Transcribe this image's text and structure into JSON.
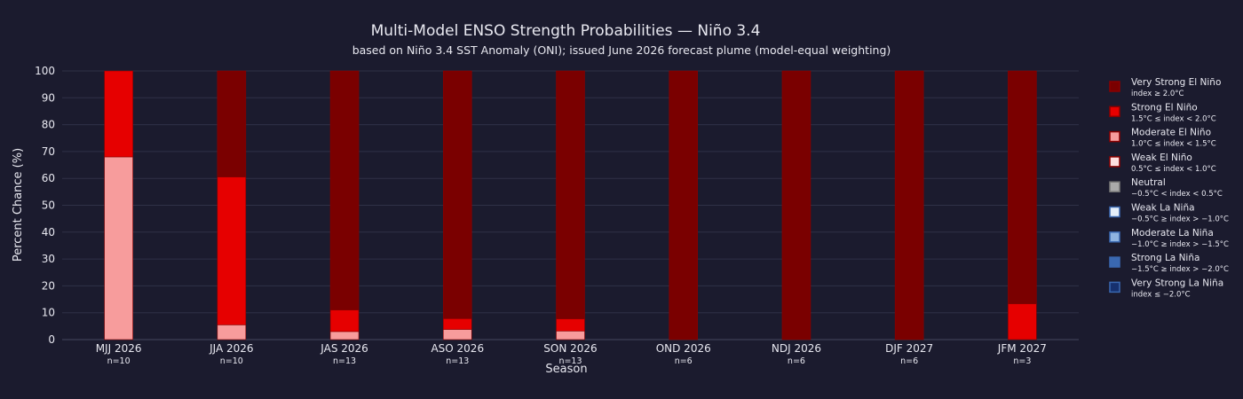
{
  "colors": {
    "background": "#1b1b2e",
    "grid": "#2f3147",
    "text": "#e8e8f0",
    "very_strong_el_nino": "#7a0000",
    "strong_el_nino": "#e60000",
    "moderate_el_nino": "#f79c9c",
    "weak_el_nino": "#fde0e0",
    "neutral": "#aaaaaa",
    "weak_la_nina": "#e6f0fa",
    "moderate_la_nina": "#8fb4e0",
    "strong_la_nina": "#3a68b0",
    "very_strong_la_nina": "#16306e"
  },
  "chart_data": {
    "type": "bar",
    "stacked": true,
    "title": "Multi-Model ENSO Strength Probabilities — Niño 3.4",
    "subtitle": "based on Niño 3.4 SST Anomaly (ONI); issued June 2026 forecast plume (model-equal weighting)",
    "xlabel": "Season",
    "ylabel": "Percent Chance (%)",
    "ylim": [
      0,
      100
    ],
    "yticks": [
      0,
      10,
      20,
      30,
      40,
      50,
      60,
      70,
      80,
      90,
      100
    ],
    "grid": true,
    "legend_position": "right",
    "categories": [
      "MJJ 2026",
      "JJA 2026",
      "JAS 2026",
      "ASO 2026",
      "SON 2026",
      "OND 2026",
      "NDJ 2026",
      "DJF 2027",
      "JFM 2027"
    ],
    "sample_sizes": [
      "n=10",
      "n=10",
      "n=13",
      "n=13",
      "n=13",
      "n=6",
      "n=6",
      "n=6",
      "n=3"
    ],
    "series": [
      {
        "name": "Very Strong La Niña",
        "range": "index ≤ −2.0°C",
        "color_key": "very_strong_la_nina",
        "values": [
          0,
          0,
          0,
          0,
          0,
          0,
          0,
          0,
          0
        ]
      },
      {
        "name": "Strong La Niña",
        "range": "−1.5°C ≥ index > −2.0°C",
        "color_key": "strong_la_nina",
        "values": [
          0,
          0,
          0,
          0,
          0,
          0,
          0,
          0,
          0
        ]
      },
      {
        "name": "Moderate La Niña",
        "range": "−1.0°C ≥ index > −1.5°C",
        "color_key": "moderate_la_nina",
        "values": [
          0,
          0,
          0,
          0,
          0,
          0,
          0,
          0,
          0
        ]
      },
      {
        "name": "Weak La Niña",
        "range": "−0.5°C ≥ index > −1.0°C",
        "color_key": "weak_la_nina",
        "values": [
          0,
          0,
          0,
          0,
          0,
          0,
          0,
          0,
          0
        ]
      },
      {
        "name": "Neutral",
        "range": "−0.5°C < index < 0.5°C",
        "color_key": "neutral",
        "values": [
          0,
          0,
          0,
          0,
          0,
          0,
          0,
          0,
          0
        ]
      },
      {
        "name": "Weak El Niño",
        "range": "0.5°C ≤ index < 1.0°C",
        "color_key": "weak_el_nino",
        "values": [
          0,
          0,
          0,
          0,
          0,
          0,
          0,
          0,
          0
        ]
      },
      {
        "name": "Moderate El Niño",
        "range": "1.0°C ≤ index < 1.5°C",
        "color_key": "moderate_el_nino",
        "values": [
          68,
          5.5,
          3,
          3.8,
          3.2,
          0,
          0,
          0,
          0
        ]
      },
      {
        "name": "Strong El Niño",
        "range": "1.5°C ≤ index < 2.0°C",
        "color_key": "strong_el_nino",
        "values": [
          32,
          55,
          8,
          4,
          4.5,
          0,
          0,
          0,
          13.3
        ]
      },
      {
        "name": "Very Strong El Niño",
        "range": "index ≥ 2.0°C",
        "color_key": "very_strong_el_nino",
        "values": [
          0,
          39.5,
          89,
          92.2,
          92.3,
          100,
          100,
          100,
          86.7
        ]
      }
    ],
    "legend_order": [
      "Very Strong El Niño",
      "Strong El Niño",
      "Moderate El Niño",
      "Weak El Niño",
      "Neutral",
      "Weak La Niña",
      "Moderate La Niña",
      "Strong La Niña",
      "Very Strong La Niña"
    ]
  }
}
